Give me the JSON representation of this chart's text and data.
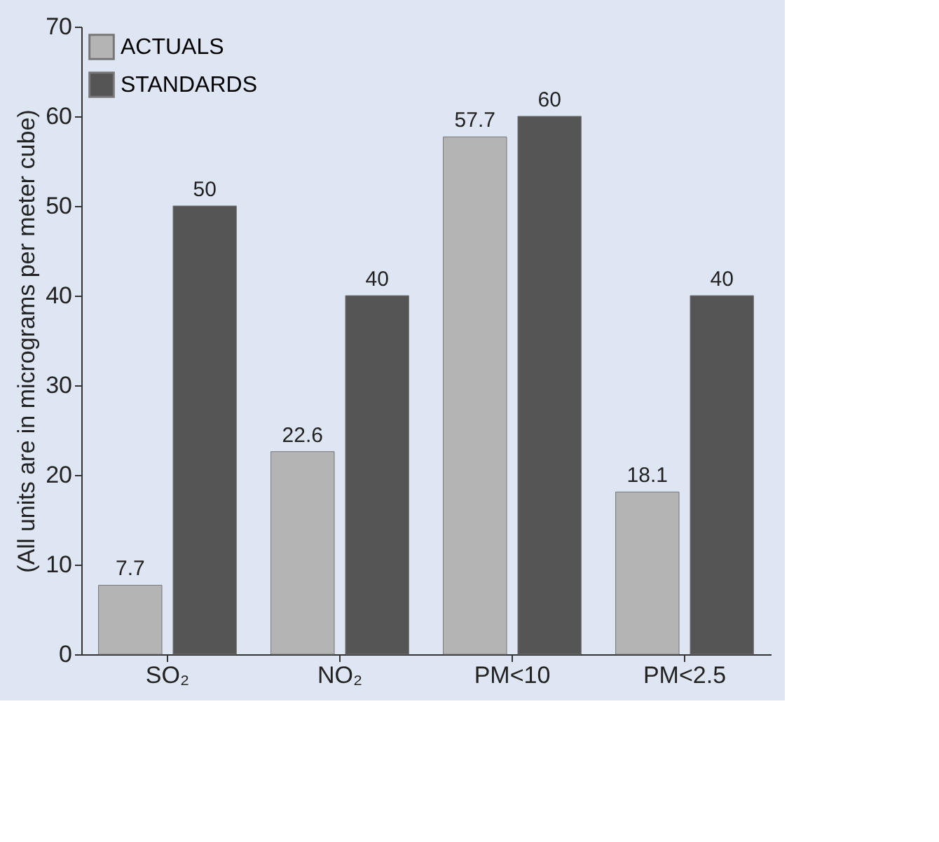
{
  "chart_data": {
    "type": "bar",
    "ylabel": "(All units are in micrograms per meter cube)",
    "categories": [
      "SO₂",
      "NO₂",
      "PM<10",
      "PM<2.5"
    ],
    "series": [
      {
        "name": "ACTUALS",
        "color": "#b4b4b4",
        "values": [
          7.7,
          22.6,
          57.7,
          18.1
        ]
      },
      {
        "name": "STANDARDS",
        "color": "#555555",
        "values": [
          50,
          40,
          60,
          40
        ]
      }
    ],
    "ylim": [
      0,
      70
    ],
    "yticks": [
      0,
      10,
      20,
      30,
      40,
      50,
      60,
      70
    ],
    "grid": false,
    "legend": "top left",
    "data_labels": true
  }
}
